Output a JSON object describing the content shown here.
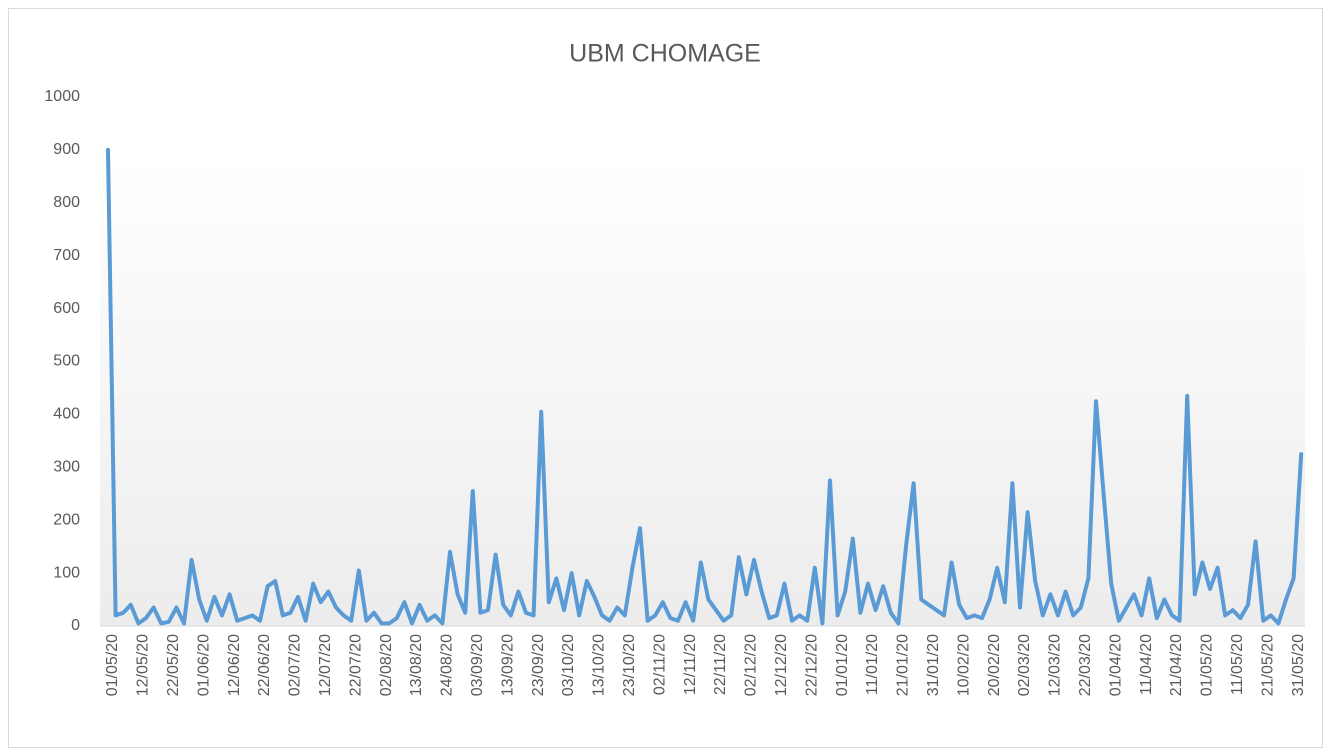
{
  "chart_data": {
    "type": "line",
    "title": "UBM CHOMAGE",
    "categories": [
      "01/05/20",
      null,
      null,
      null,
      "12/05/20",
      null,
      null,
      null,
      "22/05/20",
      null,
      null,
      null,
      "01/06/20",
      null,
      null,
      null,
      "12/06/20",
      null,
      null,
      null,
      "22/06/20",
      null,
      null,
      null,
      "02/07/20",
      null,
      null,
      null,
      "12/07/20",
      null,
      null,
      null,
      "22/07/20",
      null,
      null,
      null,
      "02/08/20",
      null,
      null,
      null,
      "13/08/20",
      null,
      null,
      null,
      "24/08/20",
      null,
      null,
      null,
      "03/09/20",
      null,
      null,
      null,
      "13/09/20",
      null,
      null,
      null,
      "23/09/20",
      null,
      null,
      null,
      "03/10/20",
      null,
      null,
      null,
      "13/10/20",
      null,
      null,
      null,
      "23/10/20",
      null,
      null,
      null,
      "02/11/20",
      null,
      null,
      null,
      "12/11/20",
      null,
      null,
      null,
      "22/11/20",
      null,
      null,
      null,
      "02/12/20",
      null,
      null,
      null,
      "12/12/20",
      null,
      null,
      null,
      "22/12/20",
      null,
      null,
      null,
      "01/01/20",
      null,
      null,
      null,
      "11/01/20",
      null,
      null,
      null,
      "21/01/20",
      null,
      null,
      null,
      "31/01/20",
      null,
      null,
      null,
      "10/02/20",
      null,
      null,
      null,
      "20/02/20",
      null,
      null,
      null,
      "02/03/20",
      null,
      null,
      null,
      "12/03/20",
      null,
      null,
      null,
      "22/03/20",
      null,
      null,
      null,
      "01/04/20",
      null,
      null,
      null,
      "11/04/20",
      null,
      null,
      null,
      "21/04/20",
      null,
      null,
      null,
      "01/05/20",
      null,
      null,
      null,
      "11/05/20",
      null,
      null,
      null,
      "21/05/20",
      null,
      null,
      null,
      "31/05/20",
      null
    ],
    "series": [
      {
        "name": "UBM CHOMAGE",
        "color": "#5b9bd5",
        "values": [
          900,
          20,
          25,
          40,
          5,
          15,
          35,
          5,
          8,
          35,
          5,
          125,
          50,
          10,
          55,
          20,
          60,
          10,
          15,
          20,
          10,
          75,
          85,
          20,
          25,
          55,
          10,
          80,
          45,
          65,
          35,
          20,
          10,
          105,
          10,
          25,
          5,
          5,
          15,
          45,
          5,
          40,
          10,
          20,
          5,
          140,
          60,
          25,
          255,
          25,
          30,
          135,
          40,
          20,
          65,
          25,
          20,
          405,
          45,
          90,
          30,
          100,
          20,
          85,
          55,
          20,
          10,
          35,
          20,
          110,
          185,
          10,
          20,
          45,
          15,
          10,
          45,
          10,
          120,
          50,
          30,
          10,
          20,
          130,
          60,
          125,
          65,
          15,
          20,
          80,
          10,
          20,
          10,
          110,
          5,
          275,
          20,
          65,
          165,
          25,
          80,
          30,
          75,
          25,
          5,
          150,
          270,
          50,
          40,
          30,
          20,
          120,
          40,
          15,
          20,
          15,
          50,
          110,
          45,
          270,
          35,
          215,
          85,
          20,
          60,
          20,
          65,
          20,
          35,
          90,
          425,
          250,
          80,
          10,
          35,
          60,
          20,
          90,
          15,
          50,
          20,
          10,
          435,
          60,
          120,
          70,
          110,
          20,
          30,
          15,
          40,
          160,
          10,
          20,
          5,
          50,
          90,
          325
        ]
      }
    ],
    "ylim": [
      0,
      1000
    ],
    "yticks": [
      0,
      100,
      200,
      300,
      400,
      500,
      600,
      700,
      800,
      900,
      1000
    ],
    "grid": false
  }
}
